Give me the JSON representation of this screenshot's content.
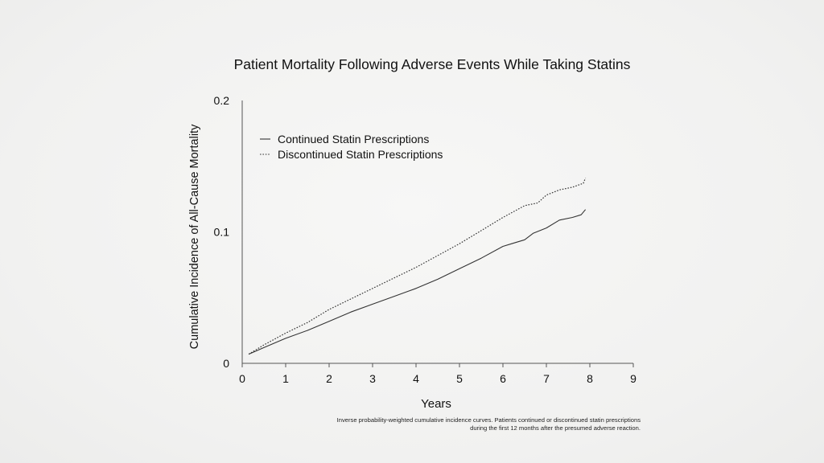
{
  "chart_data": {
    "type": "line",
    "title": "Patient Mortality Following Adverse Events While Taking Statins",
    "xlabel": "Years",
    "ylabel": "Cumulative Incidence of All-Cause Mortality",
    "xlim": [
      0,
      9
    ],
    "ylim": [
      0,
      0.2
    ],
    "x_ticks": [
      "0",
      "1",
      "2",
      "3",
      "4",
      "5",
      "6",
      "7",
      "8",
      "9"
    ],
    "y_ticks": [
      "0",
      "0.1",
      "0.2"
    ],
    "grid": false,
    "legend_position": "top-left",
    "footnote": "Inverse probability-weighted cumulative incidence curves. Patients continued or discontinued statin prescriptions during the first 12 months after the presumed adverse reaction.",
    "series": [
      {
        "name": "Continued Statin Prescriptions",
        "line_style": "solid",
        "x": [
          0.15,
          0.5,
          1.0,
          1.5,
          2.0,
          2.5,
          3.0,
          3.5,
          4.0,
          4.5,
          5.0,
          5.5,
          6.0,
          6.2,
          6.5,
          6.7,
          7.0,
          7.3,
          7.6,
          7.8,
          7.9
        ],
        "y": [
          0.007,
          0.012,
          0.019,
          0.025,
          0.032,
          0.039,
          0.045,
          0.051,
          0.057,
          0.064,
          0.072,
          0.08,
          0.089,
          0.091,
          0.094,
          0.099,
          0.103,
          0.109,
          0.111,
          0.113,
          0.117
        ]
      },
      {
        "name": "Discontinued Statin Prescriptions",
        "line_style": "dotted",
        "x": [
          0.15,
          0.5,
          1.0,
          1.5,
          2.0,
          2.5,
          3.0,
          3.5,
          4.0,
          4.5,
          5.0,
          5.5,
          6.0,
          6.5,
          6.8,
          7.0,
          7.3,
          7.6,
          7.85,
          7.9
        ],
        "y": [
          0.007,
          0.014,
          0.023,
          0.031,
          0.041,
          0.049,
          0.057,
          0.065,
          0.073,
          0.082,
          0.091,
          0.101,
          0.111,
          0.12,
          0.122,
          0.128,
          0.132,
          0.134,
          0.137,
          0.141
        ]
      }
    ]
  }
}
